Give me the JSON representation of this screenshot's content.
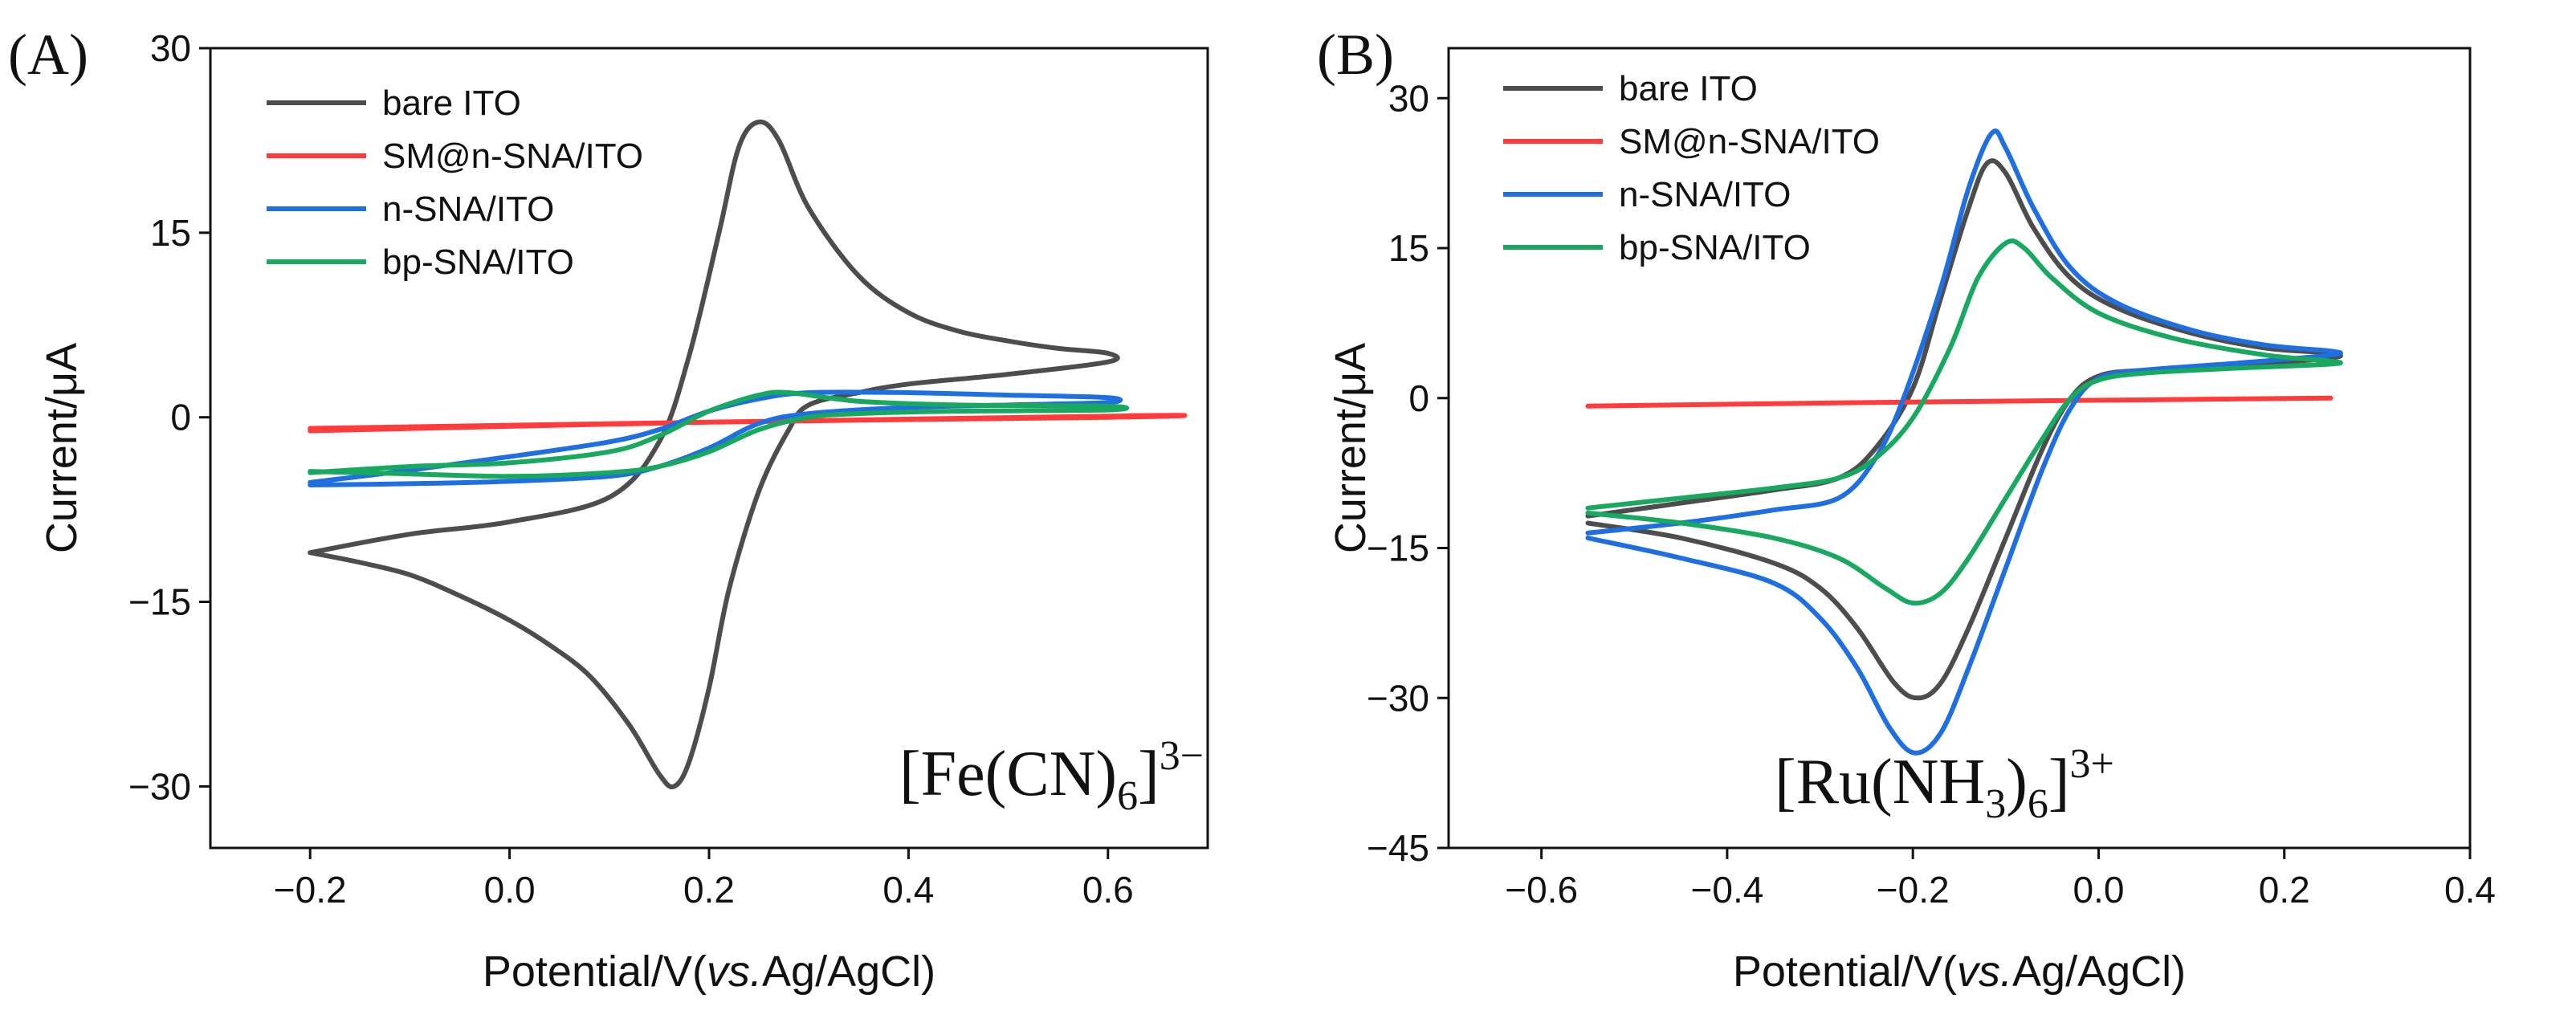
{
  "chart_data": [
    {
      "type": "line",
      "panel_label": "(A)",
      "xlabel_main": "Potential/V(",
      "xlabel_italic": "vs.",
      "xlabel_end": "Ag/AgCl)",
      "ylabel": "Current/μA",
      "xlim": [
        -0.3,
        0.7
      ],
      "ylim": [
        -35,
        30
      ],
      "xticks": [
        -0.2,
        0.0,
        0.2,
        0.4,
        0.6
      ],
      "xtick_labels": [
        "−0.2",
        "0.0",
        "0.2",
        "0.4",
        "0.6"
      ],
      "yticks": [
        30,
        15,
        0,
        -15,
        -30
      ],
      "ytick_labels": [
        "30",
        "15",
        "0",
        "−15",
        "−30"
      ],
      "annotation": {
        "base": "[Fe(CN)",
        "sub": "6",
        "close": "]",
        "sup": "3−"
      },
      "legend_position": "top-left",
      "series": [
        {
          "name": "bare ITO",
          "color": "#4d4d4d",
          "points": [
            [
              -0.2,
              -11
            ],
            [
              -0.1,
              -9.5
            ],
            [
              0,
              -8.5
            ],
            [
              0.1,
              -6.5
            ],
            [
              0.15,
              -2
            ],
            [
              0.18,
              5
            ],
            [
              0.21,
              15
            ],
            [
              0.23,
              22
            ],
            [
              0.25,
              24
            ],
            [
              0.27,
              22.5
            ],
            [
              0.3,
              17
            ],
            [
              0.35,
              11.5
            ],
            [
              0.4,
              8.5
            ],
            [
              0.45,
              7
            ],
            [
              0.5,
              6.2
            ],
            [
              0.55,
              5.6
            ],
            [
              0.6,
              5.2
            ],
            [
              0.6,
              4.5
            ],
            [
              0.5,
              3.5
            ],
            [
              0.4,
              2.7
            ],
            [
              0.35,
              2
            ],
            [
              0.3,
              1
            ],
            [
              0.28,
              -1
            ],
            [
              0.25,
              -6
            ],
            [
              0.22,
              -14
            ],
            [
              0.2,
              -22
            ],
            [
              0.18,
              -28
            ],
            [
              0.165,
              -30
            ],
            [
              0.15,
              -29
            ],
            [
              0.12,
              -25
            ],
            [
              0.08,
              -21
            ],
            [
              0.04,
              -18.5
            ],
            [
              0,
              -16.5
            ],
            [
              -0.05,
              -14.5
            ],
            [
              -0.1,
              -12.8
            ],
            [
              -0.15,
              -11.8
            ],
            [
              -0.2,
              -11
            ]
          ]
        },
        {
          "name": "SM@n-SNA/ITO",
          "color": "#ff3b3b",
          "points": [
            [
              -0.2,
              -1.1
            ],
            [
              0.2,
              -0.4
            ],
            [
              0.6,
              0
            ],
            [
              0.6,
              0.1
            ],
            [
              -0.2,
              -0.9
            ]
          ]
        },
        {
          "name": "n-SNA/ITO",
          "color": "#1f6fe0",
          "points": [
            [
              -0.2,
              -5.3
            ],
            [
              -0.1,
              -4.3
            ],
            [
              0,
              -3.2
            ],
            [
              0.1,
              -2
            ],
            [
              0.15,
              -1
            ],
            [
              0.2,
              0.5
            ],
            [
              0.25,
              1.5
            ],
            [
              0.3,
              2
            ],
            [
              0.4,
              2
            ],
            [
              0.5,
              1.8
            ],
            [
              0.6,
              1.6
            ],
            [
              0.6,
              1.2
            ],
            [
              0.5,
              1.0
            ],
            [
              0.4,
              0.8
            ],
            [
              0.3,
              0.3
            ],
            [
              0.25,
              -0.5
            ],
            [
              0.2,
              -2.5
            ],
            [
              0.15,
              -4
            ],
            [
              0.1,
              -4.8
            ],
            [
              0,
              -5.2
            ],
            [
              -0.1,
              -5.4
            ],
            [
              -0.2,
              -5.5
            ]
          ]
        },
        {
          "name": "bp-SNA/ITO",
          "color": "#18a860",
          "points": [
            [
              -0.2,
              -4.5
            ],
            [
              -0.1,
              -4
            ],
            [
              0,
              -3.7
            ],
            [
              0.1,
              -2.8
            ],
            [
              0.15,
              -1.5
            ],
            [
              0.2,
              0.5
            ],
            [
              0.25,
              1.8
            ],
            [
              0.28,
              2
            ],
            [
              0.35,
              1.3
            ],
            [
              0.45,
              1
            ],
            [
              0.6,
              0.9
            ],
            [
              0.6,
              0.6
            ],
            [
              0.45,
              0.5
            ],
            [
              0.35,
              0.3
            ],
            [
              0.3,
              0
            ],
            [
              0.25,
              -1
            ],
            [
              0.2,
              -2.8
            ],
            [
              0.15,
              -4
            ],
            [
              0.1,
              -4.5
            ],
            [
              0,
              -4.8
            ],
            [
              -0.1,
              -4.6
            ],
            [
              -0.2,
              -4.4
            ]
          ]
        }
      ]
    },
    {
      "type": "line",
      "panel_label": "(B)",
      "xlabel_main": "Potential/V(",
      "xlabel_italic": "vs.",
      "xlabel_end": "Ag/AgCl)",
      "ylabel": "Current/μA",
      "xlim": [
        -0.7,
        0.4
      ],
      "ylim": [
        -45,
        35
      ],
      "xticks": [
        -0.6,
        -0.4,
        -0.2,
        0.0,
        0.2,
        0.4
      ],
      "xtick_labels": [
        "−0.6",
        "−0.4",
        "−0.2",
        "0.0",
        "0.2",
        "0.4"
      ],
      "yticks": [
        30,
        15,
        0,
        -15,
        -30,
        -45
      ],
      "ytick_labels": [
        "30",
        "15",
        "0",
        "−15",
        "−30",
        "−45"
      ],
      "annotation": {
        "base": "[Ru(NH",
        "sub": "3",
        "mid": ")",
        "sub2": "6",
        "close": "]",
        "sup": "3+"
      },
      "legend_position": "top-left",
      "series": [
        {
          "name": "bare ITO",
          "color": "#4d4d4d",
          "points": [
            [
              -0.55,
              -11.8
            ],
            [
              -0.45,
              -10.5
            ],
            [
              -0.35,
              -9.2
            ],
            [
              -0.28,
              -8
            ],
            [
              -0.24,
              -5
            ],
            [
              -0.2,
              1
            ],
            [
              -0.17,
              10
            ],
            [
              -0.14,
              19
            ],
            [
              -0.12,
              23.5
            ],
            [
              -0.1,
              22.5
            ],
            [
              -0.07,
              17
            ],
            [
              -0.03,
              12
            ],
            [
              0.02,
              9
            ],
            [
              0.1,
              6.5
            ],
            [
              0.18,
              5
            ],
            [
              0.25,
              4.5
            ],
            [
              0.25,
              4
            ],
            [
              0.15,
              3.3
            ],
            [
              0.05,
              2.8
            ],
            [
              0,
              2.2
            ],
            [
              -0.03,
              0
            ],
            [
              -0.06,
              -5
            ],
            [
              -0.1,
              -14
            ],
            [
              -0.14,
              -23
            ],
            [
              -0.17,
              -28.5
            ],
            [
              -0.195,
              -30
            ],
            [
              -0.22,
              -28.5
            ],
            [
              -0.26,
              -23
            ],
            [
              -0.3,
              -19
            ],
            [
              -0.35,
              -16.5
            ],
            [
              -0.45,
              -14
            ],
            [
              -0.55,
              -12.5
            ]
          ]
        },
        {
          "name": "SM@n-SNA/ITO",
          "color": "#ff3b3b",
          "points": [
            [
              -0.55,
              -0.8
            ],
            [
              -0.2,
              -0.4
            ],
            [
              0.25,
              0
            ]
          ]
        },
        {
          "name": "n-SNA/ITO",
          "color": "#1f6fe0",
          "points": [
            [
              -0.55,
              -13.5
            ],
            [
              -0.45,
              -12.5
            ],
            [
              -0.35,
              -11.2
            ],
            [
              -0.28,
              -10
            ],
            [
              -0.24,
              -6
            ],
            [
              -0.21,
              0
            ],
            [
              -0.17,
              11
            ],
            [
              -0.14,
              21
            ],
            [
              -0.115,
              26.5
            ],
            [
              -0.1,
              25
            ],
            [
              -0.07,
              19
            ],
            [
              -0.03,
              13
            ],
            [
              0.02,
              9.5
            ],
            [
              0.1,
              6.8
            ],
            [
              0.18,
              5.3
            ],
            [
              0.25,
              4.7
            ],
            [
              0.25,
              4.3
            ],
            [
              0.15,
              3.5
            ],
            [
              0.05,
              2.8
            ],
            [
              0,
              2
            ],
            [
              -0.03,
              -1
            ],
            [
              -0.06,
              -7
            ],
            [
              -0.1,
              -17
            ],
            [
              -0.14,
              -27
            ],
            [
              -0.17,
              -33.5
            ],
            [
              -0.198,
              -35.5
            ],
            [
              -0.225,
              -33
            ],
            [
              -0.26,
              -27
            ],
            [
              -0.3,
              -22
            ],
            [
              -0.35,
              -18.5
            ],
            [
              -0.45,
              -16
            ],
            [
              -0.55,
              -14
            ]
          ]
        },
        {
          "name": "bp-SNA/ITO",
          "color": "#18a860",
          "points": [
            [
              -0.55,
              -11
            ],
            [
              -0.45,
              -10
            ],
            [
              -0.35,
              -9
            ],
            [
              -0.28,
              -8
            ],
            [
              -0.24,
              -6
            ],
            [
              -0.2,
              -2
            ],
            [
              -0.16,
              5
            ],
            [
              -0.13,
              12
            ],
            [
              -0.1,
              15.5
            ],
            [
              -0.08,
              15
            ],
            [
              -0.05,
              12
            ],
            [
              0,
              8.5
            ],
            [
              0.08,
              6
            ],
            [
              0.18,
              4.3
            ],
            [
              0.25,
              3.7
            ],
            [
              0.25,
              3.4
            ],
            [
              0.15,
              3
            ],
            [
              0.05,
              2.5
            ],
            [
              0,
              1.8
            ],
            [
              -0.03,
              0
            ],
            [
              -0.06,
              -4
            ],
            [
              -0.1,
              -10
            ],
            [
              -0.14,
              -16
            ],
            [
              -0.17,
              -19.5
            ],
            [
              -0.2,
              -20.5
            ],
            [
              -0.23,
              -19
            ],
            [
              -0.28,
              -16
            ],
            [
              -0.35,
              -14
            ],
            [
              -0.45,
              -12.5
            ],
            [
              -0.55,
              -11.5
            ]
          ]
        }
      ]
    }
  ]
}
